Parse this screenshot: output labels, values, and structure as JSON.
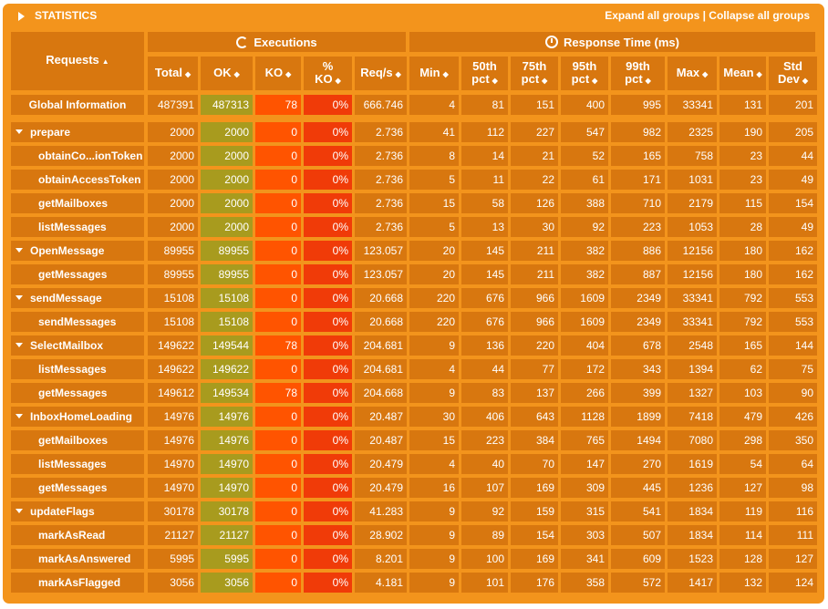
{
  "title": "STATISTICS",
  "links": {
    "expand": "Expand all groups",
    "separator": " | ",
    "collapse": "Collapse all groups"
  },
  "groups": {
    "executions": "Executions",
    "response_time": "Response Time (ms)"
  },
  "headers": [
    "Requests",
    "Total",
    "OK",
    "KO",
    "% KO",
    "Req/s",
    "Min",
    "50th pct",
    "75th pct",
    "95th pct",
    "99th pct",
    "Max",
    "Mean",
    "Std Dev"
  ],
  "colors": {
    "panel": "#f3941c",
    "cell": "#d8770f",
    "ok": "#a89b1e",
    "ko": "#ff5400",
    "pct_ko": "#f03b08"
  },
  "global": [
    "Global Information",
    "487391",
    "487313",
    "78",
    "0%",
    "666.746",
    "4",
    "81",
    "151",
    "400",
    "995",
    "33341",
    "131",
    "201"
  ],
  "rows": [
    {
      "level": 0,
      "cells": [
        "prepare",
        "2000",
        "2000",
        "0",
        "0%",
        "2.736",
        "41",
        "112",
        "227",
        "547",
        "982",
        "2325",
        "190",
        "205"
      ]
    },
    {
      "level": 1,
      "cells": [
        "obtainCo...ionToken",
        "2000",
        "2000",
        "0",
        "0%",
        "2.736",
        "8",
        "14",
        "21",
        "52",
        "165",
        "758",
        "23",
        "44"
      ]
    },
    {
      "level": 1,
      "cells": [
        "obtainAccessToken",
        "2000",
        "2000",
        "0",
        "0%",
        "2.736",
        "5",
        "11",
        "22",
        "61",
        "171",
        "1031",
        "23",
        "49"
      ]
    },
    {
      "level": 1,
      "cells": [
        "getMailboxes",
        "2000",
        "2000",
        "0",
        "0%",
        "2.736",
        "15",
        "58",
        "126",
        "388",
        "710",
        "2179",
        "115",
        "154"
      ]
    },
    {
      "level": 1,
      "cells": [
        "listMessages",
        "2000",
        "2000",
        "0",
        "0%",
        "2.736",
        "5",
        "13",
        "30",
        "92",
        "223",
        "1053",
        "28",
        "49"
      ]
    },
    {
      "level": 0,
      "cells": [
        "OpenMessage",
        "89955",
        "89955",
        "0",
        "0%",
        "123.057",
        "20",
        "145",
        "211",
        "382",
        "886",
        "12156",
        "180",
        "162"
      ]
    },
    {
      "level": 1,
      "cells": [
        "getMessages",
        "89955",
        "89955",
        "0",
        "0%",
        "123.057",
        "20",
        "145",
        "211",
        "382",
        "887",
        "12156",
        "180",
        "162"
      ]
    },
    {
      "level": 0,
      "cells": [
        "sendMessage",
        "15108",
        "15108",
        "0",
        "0%",
        "20.668",
        "220",
        "676",
        "966",
        "1609",
        "2349",
        "33341",
        "792",
        "553"
      ]
    },
    {
      "level": 1,
      "cells": [
        "sendMessages",
        "15108",
        "15108",
        "0",
        "0%",
        "20.668",
        "220",
        "676",
        "966",
        "1609",
        "2349",
        "33341",
        "792",
        "553"
      ]
    },
    {
      "level": 0,
      "cells": [
        "SelectMailbox",
        "149622",
        "149544",
        "78",
        "0%",
        "204.681",
        "9",
        "136",
        "220",
        "404",
        "678",
        "2548",
        "165",
        "144"
      ]
    },
    {
      "level": 1,
      "cells": [
        "listMessages",
        "149622",
        "149622",
        "0",
        "0%",
        "204.681",
        "4",
        "44",
        "77",
        "172",
        "343",
        "1394",
        "62",
        "75"
      ]
    },
    {
      "level": 1,
      "cells": [
        "getMessages",
        "149612",
        "149534",
        "78",
        "0%",
        "204.668",
        "9",
        "83",
        "137",
        "266",
        "399",
        "1327",
        "103",
        "90"
      ]
    },
    {
      "level": 0,
      "cells": [
        "InboxHomeLoading",
        "14976",
        "14976",
        "0",
        "0%",
        "20.487",
        "30",
        "406",
        "643",
        "1128",
        "1899",
        "7418",
        "479",
        "426"
      ]
    },
    {
      "level": 1,
      "cells": [
        "getMailboxes",
        "14976",
        "14976",
        "0",
        "0%",
        "20.487",
        "15",
        "223",
        "384",
        "765",
        "1494",
        "7080",
        "298",
        "350"
      ]
    },
    {
      "level": 1,
      "cells": [
        "listMessages",
        "14970",
        "14970",
        "0",
        "0%",
        "20.479",
        "4",
        "40",
        "70",
        "147",
        "270",
        "1619",
        "54",
        "64"
      ]
    },
    {
      "level": 1,
      "cells": [
        "getMessages",
        "14970",
        "14970",
        "0",
        "0%",
        "20.479",
        "16",
        "107",
        "169",
        "309",
        "445",
        "1236",
        "127",
        "98"
      ]
    },
    {
      "level": 0,
      "cells": [
        "updateFlags",
        "30178",
        "30178",
        "0",
        "0%",
        "41.283",
        "9",
        "92",
        "159",
        "315",
        "541",
        "1834",
        "119",
        "116"
      ]
    },
    {
      "level": 1,
      "cells": [
        "markAsRead",
        "21127",
        "21127",
        "0",
        "0%",
        "28.902",
        "9",
        "89",
        "154",
        "303",
        "507",
        "1834",
        "114",
        "111"
      ]
    },
    {
      "level": 1,
      "cells": [
        "markAsAnswered",
        "5995",
        "5995",
        "0",
        "0%",
        "8.201",
        "9",
        "100",
        "169",
        "341",
        "609",
        "1523",
        "128",
        "127"
      ]
    },
    {
      "level": 1,
      "cells": [
        "markAsFlagged",
        "3056",
        "3056",
        "0",
        "0%",
        "4.181",
        "9",
        "101",
        "176",
        "358",
        "572",
        "1417",
        "132",
        "124"
      ]
    }
  ]
}
